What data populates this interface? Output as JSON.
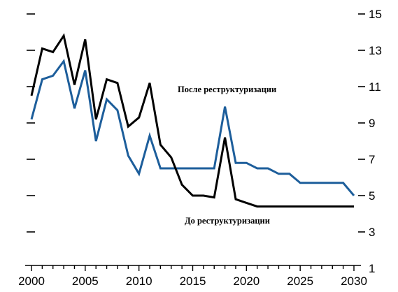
{
  "chart_data": {
    "type": "line",
    "title": "",
    "xlabel": "",
    "ylabel": "",
    "xlim": [
      2000,
      2030
    ],
    "ylim": [
      1,
      15
    ],
    "grid": false,
    "x_ticks": [
      "2000",
      "2005",
      "2010",
      "2015",
      "2020",
      "2025",
      "2030"
    ],
    "y_ticks": [
      "1",
      "3",
      "5",
      "7",
      "9",
      "11",
      "13",
      "15"
    ],
    "x": [
      2000,
      2001,
      2002,
      2003,
      2004,
      2005,
      2006,
      2007,
      2008,
      2009,
      2010,
      2011,
      2012,
      2013,
      2014,
      2015,
      2016,
      2017,
      2018,
      2019,
      2020,
      2021,
      2022,
      2023,
      2024,
      2025,
      2026,
      2027,
      2028,
      2029,
      2030
    ],
    "series": [
      {
        "name": "До реструктуризации",
        "color": "#000000",
        "values": [
          10.5,
          13.1,
          12.9,
          13.8,
          11.1,
          13.6,
          9.2,
          11.4,
          11.2,
          8.8,
          9.3,
          11.2,
          7.8,
          7.1,
          5.6,
          5.0,
          5.0,
          4.9,
          8.2,
          4.8,
          4.6,
          4.4,
          4.4,
          4.4,
          4.4,
          4.4,
          4.4,
          4.4,
          4.4,
          4.4,
          4.4
        ]
      },
      {
        "name": "После реструктуризации",
        "color": "#1d5e9b",
        "values": [
          9.2,
          11.4,
          11.6,
          12.4,
          9.8,
          11.9,
          8.0,
          10.3,
          9.7,
          7.2,
          6.2,
          8.3,
          6.5,
          6.5,
          6.5,
          6.5,
          6.5,
          6.5,
          9.9,
          6.8,
          6.8,
          6.5,
          6.5,
          6.2,
          6.2,
          5.7,
          5.7,
          5.7,
          5.7,
          5.7,
          5.0
        ]
      }
    ],
    "annotations": [
      {
        "series": 1,
        "text": "После реструктуризации"
      },
      {
        "series": 0,
        "text": "До реструктуризации"
      }
    ]
  }
}
